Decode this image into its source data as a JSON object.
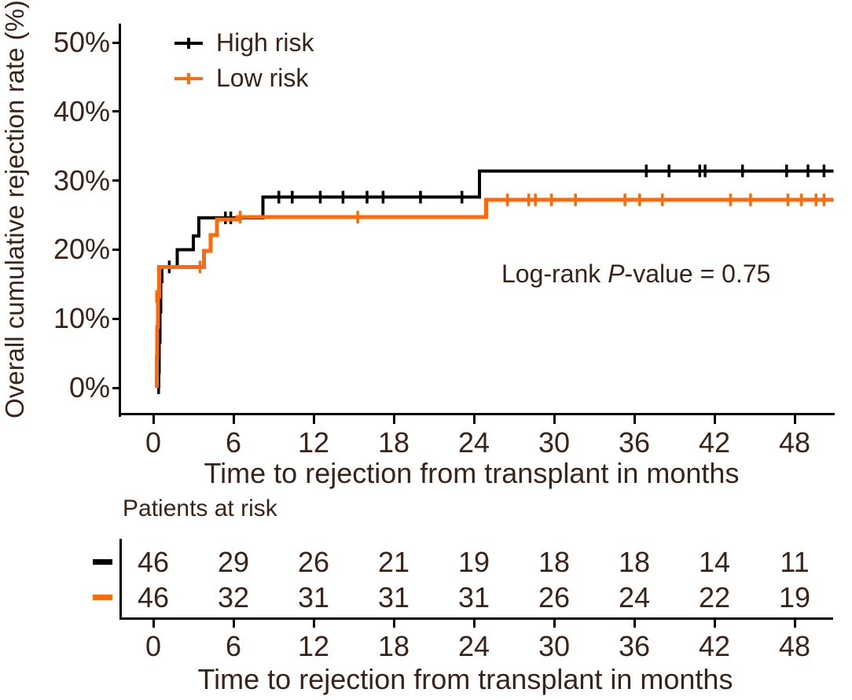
{
  "figure": {
    "text_color": "#3b2417",
    "axis_color": "#000000",
    "high_risk_color": "#000000",
    "low_risk_color": "#fb6a0d",
    "background": "#ffffff"
  },
  "chart_data": {
    "type": "line",
    "subtype": "kaplan-meier-cumulative-incidence-step",
    "title": "",
    "ylabel": "Overall cumulative rejection rate (%)",
    "xlabel": "Time to rejection from transplant in months",
    "ylim": [
      0,
      50
    ],
    "xlim": [
      0,
      51
    ],
    "grid": "off",
    "legend_position": "top-left-inside",
    "yticks": {
      "values": [
        0,
        10,
        20,
        30,
        40,
        50
      ],
      "labels": [
        "0%",
        "10%",
        "20%",
        "30%",
        "40%",
        "50%"
      ]
    },
    "xticks": {
      "values": [
        0,
        6,
        12,
        18,
        24,
        30,
        36,
        42,
        48
      ],
      "labels": [
        "0",
        "6",
        "12",
        "18",
        "24",
        "30",
        "36",
        "42",
        "48"
      ]
    },
    "legend": [
      {
        "name": "High risk"
      },
      {
        "name": "Low risk"
      }
    ],
    "annotation": {
      "prefix": "Log-rank ",
      "italic": "P",
      "suffix": "-value = 0.75"
    },
    "series": [
      {
        "name": "High risk",
        "color": "#000000",
        "width": 4,
        "points": [
          [
            0.4,
            0
          ],
          [
            0.4,
            2.2
          ],
          [
            0.45,
            2.2
          ],
          [
            0.45,
            6.6
          ],
          [
            0.5,
            6.6
          ],
          [
            0.5,
            11
          ],
          [
            0.55,
            11
          ],
          [
            0.55,
            15.4
          ],
          [
            0.65,
            15.4
          ],
          [
            0.65,
            17.5
          ],
          [
            1.8,
            17.5
          ],
          [
            1.8,
            20
          ],
          [
            3,
            20
          ],
          [
            3,
            22
          ],
          [
            3.4,
            22
          ],
          [
            3.4,
            24.6
          ],
          [
            8.2,
            24.6
          ],
          [
            8.2,
            27.6
          ],
          [
            24.4,
            27.6
          ],
          [
            24.4,
            31.4
          ],
          [
            50.9,
            31.4
          ]
        ],
        "censors": [
          [
            0.4,
            0
          ],
          [
            1.2,
            17.5
          ],
          [
            5.4,
            24.6
          ],
          [
            5.8,
            24.6
          ],
          [
            9.4,
            27.6
          ],
          [
            10.4,
            27.6
          ],
          [
            12.5,
            27.6
          ],
          [
            14.2,
            27.6
          ],
          [
            16,
            27.6
          ],
          [
            17.2,
            27.6
          ],
          [
            20,
            27.6
          ],
          [
            23.1,
            27.6
          ],
          [
            36.9,
            31.4
          ],
          [
            38.6,
            31.4
          ],
          [
            40.9,
            31.4
          ],
          [
            41.3,
            31.4
          ],
          [
            44.1,
            31.4
          ],
          [
            47.4,
            31.4
          ],
          [
            49,
            31.4
          ],
          [
            50.2,
            31.4
          ]
        ]
      },
      {
        "name": "Low risk",
        "color": "#fb6a0d",
        "width": 5,
        "points": [
          [
            0.25,
            0
          ],
          [
            0.25,
            4.4
          ],
          [
            0.3,
            4.4
          ],
          [
            0.3,
            8.8
          ],
          [
            0.35,
            8.8
          ],
          [
            0.35,
            13.2
          ],
          [
            0.45,
            13.2
          ],
          [
            0.45,
            17.5
          ],
          [
            3.8,
            17.5
          ],
          [
            3.8,
            19.8
          ],
          [
            4.3,
            19.8
          ],
          [
            4.3,
            22.1
          ],
          [
            4.75,
            22.1
          ],
          [
            4.75,
            24.4
          ],
          [
            6.3,
            24.4
          ],
          [
            6.3,
            24.7
          ],
          [
            24.9,
            24.7
          ],
          [
            24.9,
            27.2
          ],
          [
            50.9,
            27.2
          ]
        ],
        "censors": [
          [
            0.25,
            4.4
          ],
          [
            0.25,
            13.2
          ],
          [
            3.5,
            17.5
          ],
          [
            6.5,
            24.7
          ],
          [
            15.3,
            24.7
          ],
          [
            26.5,
            27.2
          ],
          [
            28.1,
            27.2
          ],
          [
            28.6,
            27.2
          ],
          [
            29.8,
            27.2
          ],
          [
            31.6,
            27.2
          ],
          [
            35.3,
            27.2
          ],
          [
            36.4,
            27.2
          ],
          [
            38.1,
            27.2
          ],
          [
            43.2,
            27.2
          ],
          [
            44.7,
            27.2
          ],
          [
            47.5,
            27.2
          ],
          [
            48.5,
            27.2
          ],
          [
            49.6,
            27.2
          ],
          [
            50.2,
            27.2
          ]
        ]
      }
    ]
  },
  "risk_table": {
    "title": "Patients at risk",
    "xlabel": "Time to rejection from transplant in months",
    "xticks": [
      "0",
      "6",
      "12",
      "18",
      "24",
      "30",
      "36",
      "42",
      "48"
    ],
    "rows": [
      {
        "name": "High risk",
        "color": "#000000",
        "counts": [
          "46",
          "29",
          "26",
          "21",
          "19",
          "18",
          "18",
          "14",
          "11"
        ]
      },
      {
        "name": "Low risk",
        "color": "#fb6a0d",
        "counts": [
          "46",
          "32",
          "31",
          "31",
          "31",
          "26",
          "24",
          "22",
          "19"
        ]
      }
    ]
  }
}
